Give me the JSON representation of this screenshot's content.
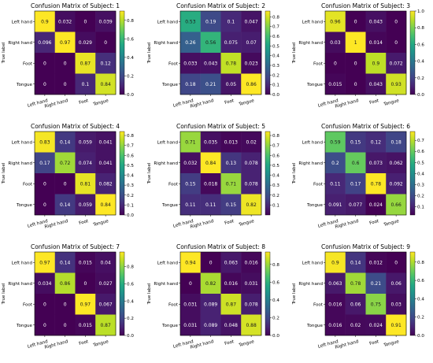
{
  "chart_data": [
    {
      "type": "heatmap",
      "title": "Confusion Matrix of Subject: 1",
      "xlabel": "",
      "ylabel": "True label",
      "labels": [
        "Left hand",
        "Right hand",
        "Foot",
        "Tongue"
      ],
      "values": [
        [
          0.9,
          0.032,
          0,
          0.039
        ],
        [
          0.096,
          0.97,
          0.029,
          0
        ],
        [
          0,
          0,
          0.87,
          0.12
        ],
        [
          0,
          0,
          0.1,
          0.84
        ]
      ],
      "cells": [
        [
          "0.9",
          "0.032",
          "0",
          "0.039"
        ],
        [
          "0.096",
          "0.97",
          "0.029",
          "0"
        ],
        [
          "0",
          "0",
          "0.87",
          "0.12"
        ],
        [
          "0",
          "0",
          "0.1",
          "0.84"
        ]
      ],
      "vmin": 0,
      "vmax": 0.9,
      "colorbar_ticks": [
        0,
        0.2,
        0.4,
        0.6,
        0.8
      ],
      "colorbar_labels": [
        "0.0",
        "0.2",
        "0.4",
        "0.6",
        "0.8"
      ]
    },
    {
      "type": "heatmap",
      "title": "Confusion Matrix of Subject: 2",
      "xlabel": "",
      "ylabel": "True label",
      "labels": [
        "Left hand",
        "Right hand",
        "Foot",
        "Tongue"
      ],
      "values": [
        [
          0.53,
          0.19,
          0.1,
          0.047
        ],
        [
          0.26,
          0.56,
          0.075,
          0.07
        ],
        [
          0.033,
          0.043,
          0.78,
          0.023
        ],
        [
          0.18,
          0.21,
          0.05,
          0.86
        ]
      ],
      "cells": [
        [
          "0.53",
          "0.19",
          "0.1",
          "0.047"
        ],
        [
          "0.26",
          "0.56",
          "0.075",
          "0.07"
        ],
        [
          "0.033",
          "0.043",
          "0.78",
          "0.023"
        ],
        [
          "0.18",
          "0.21",
          "0.05",
          "0.86"
        ]
      ],
      "vmin": 0,
      "vmax": 0.86,
      "colorbar_ticks": [
        0,
        0.1,
        0.2,
        0.3,
        0.4,
        0.5,
        0.6,
        0.7,
        0.8
      ],
      "colorbar_labels": [
        "0.0",
        "0.1",
        "0.2",
        "0.3",
        "0.4",
        "0.5",
        "0.6",
        "0.7",
        "0.8"
      ]
    },
    {
      "type": "heatmap",
      "title": "Confusion Matrix of Subject: 3",
      "xlabel": "",
      "ylabel": "True label",
      "labels": [
        "Left hand",
        "Right hand",
        "Foot",
        "Tongue"
      ],
      "values": [
        [
          0.96,
          0,
          0.043,
          0
        ],
        [
          0.03,
          1,
          0.014,
          0
        ],
        [
          0,
          0,
          0.9,
          0.072
        ],
        [
          0.015,
          0,
          0.043,
          0.93
        ]
      ],
      "cells": [
        [
          "0.96",
          "0",
          "0.043",
          "0"
        ],
        [
          "0.03",
          "1",
          "0.014",
          "0"
        ],
        [
          "0",
          "0",
          "0.9",
          "0.072"
        ],
        [
          "0.015",
          "0",
          "0.043",
          "0.93"
        ]
      ],
      "vmin": 0,
      "vmax": 1.0,
      "colorbar_ticks": [
        0,
        0.2,
        0.4,
        0.6,
        0.8,
        1.0
      ],
      "colorbar_labels": [
        "0.0",
        "0.2",
        "0.4",
        "0.6",
        "0.8",
        "1.0"
      ]
    },
    {
      "type": "heatmap",
      "title": "Confusion Matrix of Subject: 4",
      "xlabel": "",
      "ylabel": "True label",
      "labels": [
        "Left hand",
        "Right hand",
        "Foot",
        "Tongue"
      ],
      "values": [
        [
          0.83,
          0.14,
          0.059,
          0.041
        ],
        [
          0.17,
          0.72,
          0.074,
          0.041
        ],
        [
          0,
          0,
          0.81,
          0.082
        ],
        [
          0,
          0.14,
          0.059,
          0.84
        ]
      ],
      "cells": [
        [
          "0.83",
          "0.14",
          "0.059",
          "0.041"
        ],
        [
          "0.17",
          "0.72",
          "0.074",
          "0.041"
        ],
        [
          "0",
          "0",
          "0.81",
          "0.082"
        ],
        [
          "0",
          "0.14",
          "0.059",
          "0.84"
        ]
      ],
      "vmin": 0,
      "vmax": 0.84,
      "colorbar_ticks": [
        0,
        0.1,
        0.2,
        0.3,
        0.4,
        0.5,
        0.6,
        0.7,
        0.8
      ],
      "colorbar_labels": [
        "0.0",
        "0.1",
        "0.2",
        "0.3",
        "0.4",
        "0.5",
        "0.6",
        "0.7",
        "0.8"
      ]
    },
    {
      "type": "heatmap",
      "title": "Confusion Matrix of Subject: 5",
      "xlabel": "",
      "ylabel": "True label",
      "labels": [
        "Left hand",
        "Right hand",
        "Foot",
        "Tongue"
      ],
      "values": [
        [
          0.71,
          0.035,
          0.013,
          0.02
        ],
        [
          0.032,
          0.84,
          0.13,
          0.078
        ],
        [
          0.15,
          0.018,
          0.71,
          0.078
        ],
        [
          0.11,
          0.11,
          0.15,
          0.82
        ]
      ],
      "cells": [
        [
          "0.71",
          "0.035",
          "0.013",
          "0.02"
        ],
        [
          "0.032",
          "0.84",
          "0.13",
          "0.078"
        ],
        [
          "0.15",
          "0.018",
          "0.71",
          "0.078"
        ],
        [
          "0.11",
          "0.11",
          "0.15",
          "0.82"
        ]
      ],
      "vmin": 0,
      "vmax": 0.84,
      "colorbar_ticks": [
        0.1,
        0.2,
        0.3,
        0.4,
        0.5,
        0.6,
        0.7,
        0.8
      ],
      "colorbar_labels": [
        "0.1",
        "0.2",
        "0.3",
        "0.4",
        "0.5",
        "0.6",
        "0.7",
        "0.8"
      ]
    },
    {
      "type": "heatmap",
      "title": "Confusion Matrix of Subject: 6",
      "xlabel": "",
      "ylabel": "True label",
      "labels": [
        "Left hand",
        "Right hand",
        "Foot",
        "Tongue"
      ],
      "values": [
        [
          0.59,
          0.15,
          0.12,
          0.18
        ],
        [
          0.2,
          0.6,
          0.073,
          0.062
        ],
        [
          0.11,
          0.17,
          0.78,
          0.092
        ],
        [
          0.091,
          0.077,
          0.024,
          0.66
        ]
      ],
      "cells": [
        [
          "0.59",
          "0.15",
          "0.12",
          "0.18"
        ],
        [
          "0.2",
          "0.6",
          "0.073",
          "0.062"
        ],
        [
          "0.11",
          "0.17",
          "0.78",
          "0.092"
        ],
        [
          "0.091",
          "0.077",
          "0.024",
          "0.66"
        ]
      ],
      "vmin": 0.024,
      "vmax": 0.78,
      "colorbar_ticks": [
        0.1,
        0.2,
        0.3,
        0.4,
        0.5,
        0.6,
        0.7
      ],
      "colorbar_labels": [
        "0.1",
        "0.2",
        "0.3",
        "0.4",
        "0.5",
        "0.6",
        "0.7"
      ]
    },
    {
      "type": "heatmap",
      "title": "Confusion Matrix of Subject: 7",
      "xlabel": "",
      "ylabel": "True label",
      "labels": [
        "Left hand",
        "Right hand",
        "Foot",
        "Tongue"
      ],
      "values": [
        [
          0.97,
          0.14,
          0.015,
          0.04
        ],
        [
          0.034,
          0.86,
          0,
          0.027
        ],
        [
          0,
          0,
          0.97,
          0.067
        ],
        [
          0,
          0,
          0.015,
          0.87
        ]
      ],
      "cells": [
        [
          "0.97",
          "0.14",
          "0.015",
          "0.04"
        ],
        [
          "0.034",
          "0.86",
          "0",
          "0.027"
        ],
        [
          "0",
          "0",
          "0.97",
          "0.067"
        ],
        [
          "0",
          "0",
          "0.015",
          "0.87"
        ]
      ],
      "vmin": 0,
      "vmax": 0.97,
      "colorbar_ticks": [
        0,
        0.2,
        0.4,
        0.6,
        0.8
      ],
      "colorbar_labels": [
        "0.0",
        "0.2",
        "0.4",
        "0.6",
        "0.8"
      ]
    },
    {
      "type": "heatmap",
      "title": "Confusion Matrix of Subject: 8",
      "xlabel": "",
      "ylabel": "True label",
      "labels": [
        "Left hand",
        "Right hand",
        "Foot",
        "Tongue"
      ],
      "values": [
        [
          0.94,
          0,
          0.063,
          0.016
        ],
        [
          0,
          0.82,
          0.016,
          0.031
        ],
        [
          0.031,
          0.089,
          0.87,
          0.078
        ],
        [
          0.031,
          0.089,
          0.048,
          0.88
        ]
      ],
      "cells": [
        [
          "0.94",
          "0",
          "0.063",
          "0.016"
        ],
        [
          "0",
          "0.82",
          "0.016",
          "0.031"
        ],
        [
          "0.031",
          "0.089",
          "0.87",
          "0.078"
        ],
        [
          "0.031",
          "0.089",
          "0.048",
          "0.88"
        ]
      ],
      "vmin": 0,
      "vmax": 0.94,
      "colorbar_ticks": [
        0,
        0.2,
        0.4,
        0.6,
        0.8
      ],
      "colorbar_labels": [
        "0.0",
        "0.2",
        "0.4",
        "0.6",
        "0.8"
      ]
    },
    {
      "type": "heatmap",
      "title": "Confusion Matrix of Subject: 9",
      "xlabel": "",
      "ylabel": "True label",
      "labels": [
        "Left hand",
        "Right hand",
        "Foot",
        "Tongue"
      ],
      "values": [
        [
          0.9,
          0.14,
          0.012,
          0
        ],
        [
          0.063,
          0.78,
          0.21,
          0.06
        ],
        [
          0.016,
          0.06,
          0.75,
          0.03
        ],
        [
          0.016,
          0.02,
          0.024,
          0.91
        ]
      ],
      "cells": [
        [
          "0.9",
          "0.14",
          "0.012",
          "0"
        ],
        [
          "0.063",
          "0.78",
          "0.21",
          "0.06"
        ],
        [
          "0.016",
          "0.06",
          "0.75",
          "0.03"
        ],
        [
          "0.016",
          "0.02",
          "0.024",
          "0.91"
        ]
      ],
      "vmin": 0,
      "vmax": 0.91,
      "colorbar_ticks": [
        0,
        0.2,
        0.4,
        0.6,
        0.8
      ],
      "colorbar_labels": [
        "0.0",
        "0.2",
        "0.4",
        "0.6",
        "0.8"
      ]
    }
  ]
}
